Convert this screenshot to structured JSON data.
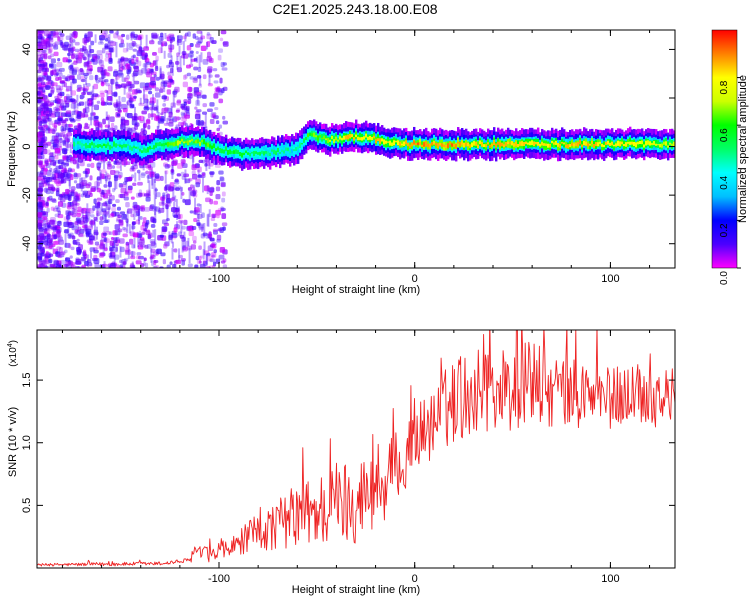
{
  "figure_title": "C2E1.2025.243.18.00.E08",
  "chart_data": [
    {
      "type": "heatmap",
      "title": "C2E1.2025.243.18.00.E08",
      "xlabel": "Height of straight line (km)",
      "ylabel": "Frequency (Hz)",
      "xlim": [
        -193,
        133
      ],
      "ylim": [
        -50,
        48
      ],
      "xticks": [
        -100,
        0,
        100
      ],
      "xtick_labels": [
        "-100",
        "0",
        "100"
      ],
      "yticks": [
        -40,
        -20,
        0,
        20,
        40
      ],
      "ytick_labels": [
        "-40",
        "-20",
        "0",
        "20",
        "40"
      ],
      "colorbar": {
        "label": "Normalized spectral amplitude",
        "range": [
          0,
          1
        ],
        "ticks": [
          0.0,
          0.2,
          0.4,
          0.6,
          0.8
        ],
        "tick_labels": [
          "0.0",
          "0.2",
          "0.4",
          "0.6",
          "0.8"
        ],
        "colors": [
          "#ff00ff",
          "#4b00ff",
          "#0000ff",
          "#00bfff",
          "#00ffff",
          "#00ff66",
          "#00ff00",
          "#ccff00",
          "#ffff00",
          "#ff8000",
          "#ff0000"
        ]
      },
      "ridge": {
        "x": [
          -180,
          -170,
          -160,
          -150,
          -140,
          -130,
          -120,
          -110,
          -100,
          -90,
          -80,
          -70,
          -60,
          -55,
          -50,
          -45,
          -40,
          -35,
          -30,
          -25,
          -20,
          -15,
          -10,
          -5,
          0,
          10,
          20,
          30,
          40,
          50,
          60,
          70,
          80,
          90,
          100,
          110,
          120,
          133
        ],
        "y": [
          1,
          1,
          0,
          1,
          -2,
          1,
          2,
          2,
          -1,
          -3,
          -3,
          -2,
          -1,
          5,
          4,
          3,
          3,
          4,
          4,
          4,
          3,
          2,
          2,
          1,
          1,
          1,
          1,
          1,
          1,
          1,
          1,
          1,
          1,
          1,
          1,
          1,
          1,
          1
        ],
        "amplitude": [
          0.4,
          0.5,
          0.55,
          0.5,
          0.5,
          0.55,
          0.7,
          0.65,
          0.55,
          0.55,
          0.5,
          0.5,
          0.45,
          0.6,
          0.65,
          0.7,
          0.7,
          0.85,
          0.8,
          0.75,
          0.85,
          0.8,
          0.8,
          0.85,
          0.9,
          0.85,
          0.9,
          0.8,
          0.85,
          0.85,
          0.8,
          0.8,
          0.85,
          0.85,
          0.8,
          0.8,
          0.75,
          0.7
        ]
      }
    },
    {
      "type": "line",
      "xlabel": "Height of straight line (km)",
      "ylabel": "SNR (10 * v/v)",
      "y_multiplier": "(x10",
      "y_multiplier_exponent": "4",
      "y_multiplier_close": ")",
      "xlim": [
        -193,
        133
      ],
      "ylim": [
        0,
        19
      ],
      "xticks": [
        -100,
        0,
        100
      ],
      "xtick_labels": [
        "-100",
        "0",
        "100"
      ],
      "yticks": [
        5,
        10,
        15
      ],
      "ytick_labels": [
        "0.5",
        "1.0",
        "1.5"
      ],
      "series": [
        {
          "name": "SNR",
          "color": "#ee2222",
          "envelope_x": [
            -193,
            -160,
            -130,
            -115,
            -112,
            -100,
            -90,
            -80,
            -70,
            -60,
            -50,
            -40,
            -30,
            -20,
            -15,
            -10,
            -5,
            0,
            10,
            20,
            30,
            40,
            50,
            60,
            70,
            80,
            90,
            100,
            110,
            120,
            133
          ],
          "envelope_mean": [
            0.25,
            0.3,
            0.35,
            0.6,
            1.2,
            1.0,
            2.0,
            2.8,
            3.5,
            4.2,
            4.5,
            5.2,
            5.5,
            6.2,
            6.5,
            8.5,
            7.5,
            10.5,
            11.5,
            13.5,
            14.0,
            14.5,
            14.0,
            15.0,
            14.0,
            14.0,
            13.8,
            13.5,
            14.0,
            13.8,
            13.5
          ],
          "envelope_spread": [
            0.1,
            0.15,
            0.15,
            0.2,
            0.6,
            0.6,
            1.0,
            1.6,
            2.0,
            2.6,
            3.0,
            3.5,
            3.5,
            3.0,
            3.0,
            2.5,
            2.0,
            2.5,
            3.0,
            3.5,
            3.5,
            3.5,
            3.5,
            3.5,
            3.0,
            3.0,
            2.8,
            2.5,
            2.5,
            2.5,
            2.5
          ]
        }
      ]
    }
  ]
}
